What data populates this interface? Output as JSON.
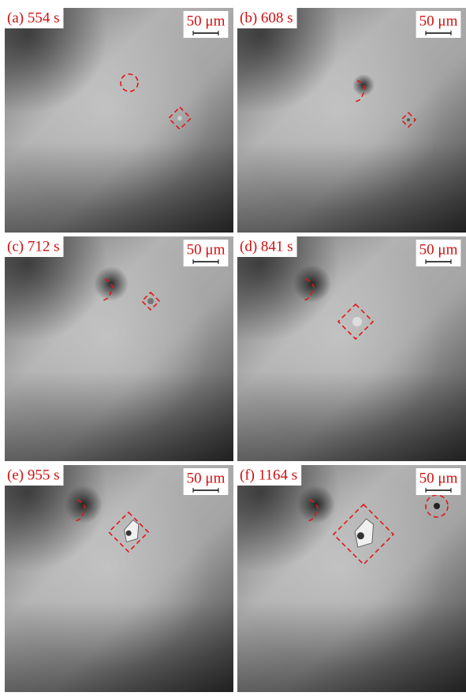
{
  "panels": [
    {
      "label": "(a) 554 s",
      "scale_bar": "50 μm"
    },
    {
      "label": "(b) 608 s",
      "scale_bar": "50 μm"
    },
    {
      "label": "(c) 712 s",
      "scale_bar": "50 μm"
    },
    {
      "label": "(d) 841 s",
      "scale_bar": "50 μm"
    },
    {
      "label": "(e) 955 s",
      "scale_bar": "50 μm"
    },
    {
      "label": "(f) 1164 s",
      "scale_bar": "50 μm"
    }
  ]
}
